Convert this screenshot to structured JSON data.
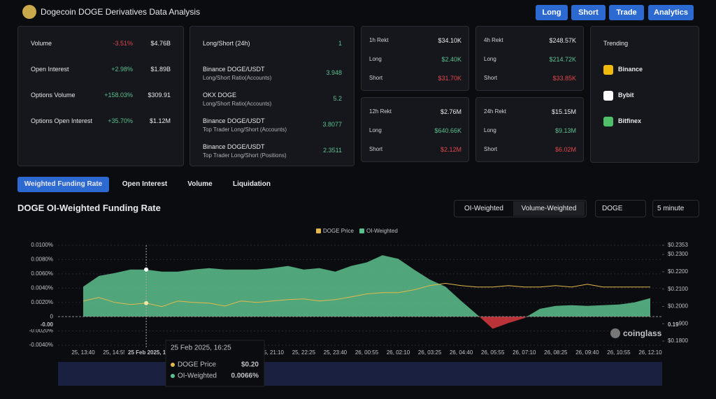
{
  "header": {
    "title": "Dogecoin DOGE Derivatives Data Analysis",
    "buttons": [
      "Long",
      "Short",
      "Trade",
      "Analytics"
    ]
  },
  "overview": [
    {
      "label": "Volume",
      "change": "-3.51%",
      "value": "$4.76B"
    },
    {
      "label": "Open Interest",
      "change": "+2.98%",
      "value": "$1.89B"
    },
    {
      "label": "Options Volume",
      "change": "+158.03%",
      "value": "$309.91"
    },
    {
      "label": "Options Open Interest",
      "change": "+35.70%",
      "value": "$1.12M"
    }
  ],
  "long_short": [
    {
      "title": "Long/Short (24h)",
      "value": "1"
    },
    {
      "title": "Binance DOGE/USDT",
      "subtitle": "Long/Short Ratio(Accounts)",
      "value": "3.948"
    },
    {
      "title": "OKX DOGE",
      "subtitle": "Long/Short Ratio(Accounts)",
      "value": "5.2"
    },
    {
      "title": "Binance DOGE/USDT",
      "subtitle": "Top Trader Long/Short (Accounts)",
      "value": "3.8077"
    },
    {
      "title": "Binance DOGE/USDT",
      "subtitle": "Top Trader Long/Short (Positions)",
      "value": "2.3511"
    }
  ],
  "rekt_labels": {
    "long": "Long",
    "short": "Short"
  },
  "rekt": [
    {
      "title": "1h Rekt",
      "total": "$34.10K",
      "long": "$2.40K",
      "short": "$31.70K"
    },
    {
      "title": "4h Rekt",
      "total": "$248.57K",
      "long": "$214.72K",
      "short": "$33.85K"
    },
    {
      "title": "12h Rekt",
      "total": "$2.76M",
      "long": "$640.66K",
      "short": "$2.12M"
    },
    {
      "title": "24h Rekt",
      "total": "$15.15M",
      "long": "$9.13M",
      "short": "$6.02M"
    }
  ],
  "trending": {
    "title": "Trending",
    "items": [
      "Binance",
      "Bybit",
      "Bitfinex"
    ]
  },
  "tabs": [
    "Weighted Funding Rate",
    "Open Interest",
    "Volume",
    "Liquidation"
  ],
  "section": {
    "title": "DOGE OI-Weighted Funding Rate",
    "toggles": [
      "OI-Weighted",
      "Volume-Weighted"
    ],
    "coin": "DOGE",
    "interval": "5 minute",
    "watermark": "coinglass"
  },
  "chart_data": {
    "type": "line",
    "categories": [
      "25, 13:40",
      null,
      "25, 14:55",
      null,
      null,
      null,
      null,
      null,
      null,
      null,
      null,
      null,
      "25, 21:10",
      null,
      "25, 22:25",
      null,
      "25, 23:40",
      null,
      "26, 00:55",
      null,
      "26, 02:10",
      null,
      "26, 03:25",
      null,
      "26, 04:40",
      null,
      "26, 05:55",
      null,
      "26, 07:10",
      null,
      "26, 08:25",
      null,
      "26, 09:40",
      null,
      "26, 10:55",
      null,
      "26, 12:10"
    ],
    "series": [
      {
        "name": "DOGE Price",
        "color": "#e3b94c",
        "axis": "y2",
        "values": [
          0.2031,
          0.2051,
          0.2023,
          0.2011,
          0.2019,
          0.1999,
          0.2031,
          0.2023,
          0.2019,
          0.2002,
          0.2031,
          0.2023,
          0.2031,
          0.2039,
          0.2043,
          0.2031,
          0.2039,
          0.2055,
          0.2072,
          0.208,
          0.208,
          0.2096,
          0.212,
          0.2133,
          0.212,
          0.2112,
          0.2112,
          0.212,
          0.2112,
          0.2112,
          0.212,
          0.2112,
          0.2128,
          0.2112,
          0.2112,
          0.2112,
          0.2112
        ]
      },
      {
        "name": "OI-Weighted",
        "color": "#5cc08e",
        "negative_color": "#d83a3f",
        "values": [
          0.0042,
          0.0057,
          0.0061,
          0.0066,
          0.0066,
          0.0063,
          0.0063,
          0.0066,
          0.0068,
          0.0066,
          0.0066,
          0.0066,
          0.0068,
          0.0071,
          0.0066,
          0.0068,
          0.0063,
          0.0071,
          0.0076,
          0.0086,
          0.0081,
          0.0066,
          0.0052,
          0.0042,
          0.0022,
          0.0003,
          -0.0017,
          -0.0009,
          -0.0002,
          0.0011,
          0.0015,
          0.0016,
          0.0015,
          0.0016,
          0.0017,
          0.002,
          0.0026
        ]
      }
    ],
    "ylim": [
      -0.004,
      0.01
    ],
    "yticks": [
      {
        "value": -0.004,
        "label": "-0.0040%"
      },
      {
        "value": -0.002,
        "label": "-0.0020%"
      },
      0,
      {
        "value": 0.002,
        "label": "0.0020%"
      },
      {
        "value": 0.004,
        "label": "0.0040%"
      },
      {
        "value": 0.006,
        "label": "0.0060%"
      },
      {
        "value": 0.008,
        "label": "0.0080%"
      },
      {
        "value": 0.01,
        "label": "0.0100%"
      }
    ],
    "y2lim": [
      0.1776,
      0.2353
    ],
    "y2ticks": [
      {
        "value": 0.18,
        "label": "$0.1800"
      },
      {
        "value": 0.19,
        "label": "$0.1900"
      },
      {
        "value": 0.2,
        "label": "$0.2000"
      },
      {
        "value": 0.21,
        "label": "$0.2100"
      },
      {
        "value": 0.22,
        "label": "$0.2200"
      },
      {
        "value": 0.23,
        "label": "$0.2300"
      },
      {
        "value": 0.2353,
        "label": "$0.2353"
      }
    ],
    "legend": "top",
    "crosshair": {
      "index": 4,
      "left_label": "-0.00",
      "right_label": "0.19"
    },
    "tooltip": {
      "time": "25 Feb 2025, 16:25",
      "price": "$0.20",
      "oi": "0.0066%"
    }
  }
}
